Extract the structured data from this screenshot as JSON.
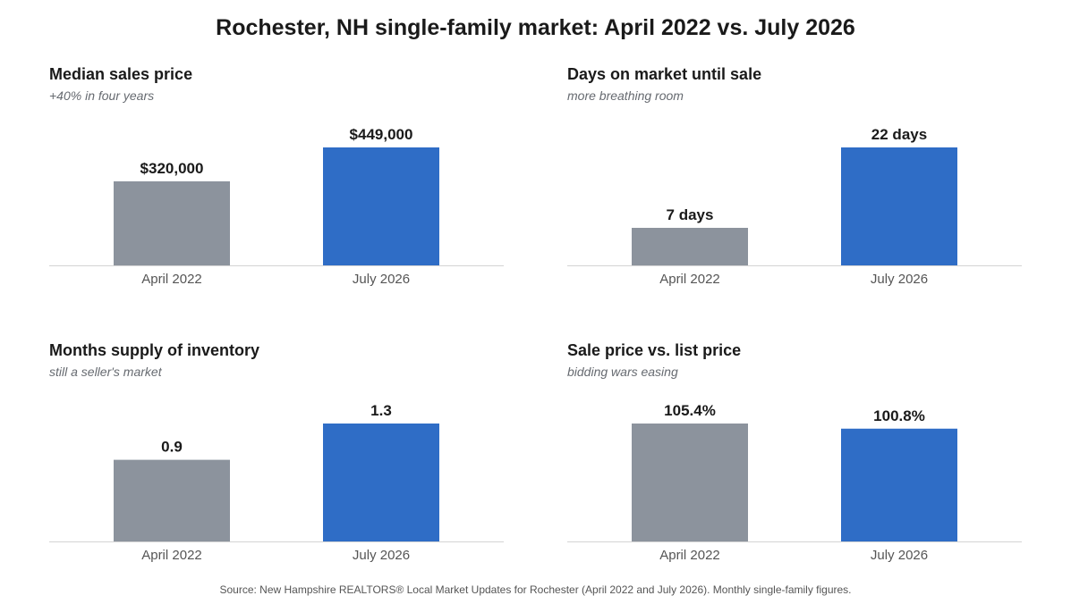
{
  "title": "Rochester, NH single-family market: April 2022 vs. July 2026",
  "source": "Source: New Hampshire REALTORS® Local Market Updates for Rochester (April 2022 and July 2026). Monthly single-family figures.",
  "colors": {
    "before": "#8c939d",
    "after": "#2f6dc6",
    "axis": "#d4d4d4",
    "tick_text": "#555555",
    "value_text": "#1a1a1a"
  },
  "chart_data": [
    {
      "type": "bar",
      "title": "Median sales price",
      "subtitle": "+40% in four years",
      "categories": [
        "April 2022",
        "July 2026"
      ],
      "values": [
        320000,
        449000
      ],
      "value_labels": [
        "$320,000",
        "$449,000"
      ],
      "ylim": [
        0,
        449000
      ]
    },
    {
      "type": "bar",
      "title": "Days on market until sale",
      "subtitle": "more breathing room",
      "categories": [
        "April 2022",
        "July 2026"
      ],
      "values": [
        7,
        22
      ],
      "value_labels": [
        "7 days",
        "22 days"
      ],
      "ylim": [
        0,
        22
      ]
    },
    {
      "type": "bar",
      "title": "Months supply of inventory",
      "subtitle": "still a seller's market",
      "categories": [
        "April 2022",
        "July 2026"
      ],
      "values": [
        0.9,
        1.3
      ],
      "value_labels": [
        "0.9",
        "1.3"
      ],
      "ylim": [
        0,
        1.3
      ]
    },
    {
      "type": "bar",
      "title": "Sale price vs. list price",
      "subtitle": "bidding wars easing",
      "categories": [
        "April 2022",
        "July 2026"
      ],
      "values": [
        105.4,
        100.8
      ],
      "value_labels": [
        "105.4%",
        "100.8%"
      ],
      "ylim": [
        0,
        105.4
      ]
    }
  ]
}
